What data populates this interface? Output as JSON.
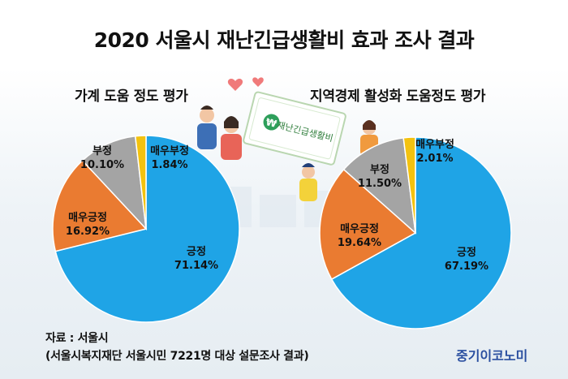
{
  "title": "2020 서울시 재난긴급생활비 효과 조사 결과",
  "chart_data": [
    {
      "type": "pie",
      "title": "가계 도움 정도 평가",
      "slices": [
        {
          "label": "긍정",
          "value": 71.14,
          "display": "71.14%",
          "color": "#1fa4e6"
        },
        {
          "label": "매우긍정",
          "value": 16.92,
          "display": "16.92%",
          "color": "#ea7b31"
        },
        {
          "label": "부정",
          "value": 10.1,
          "display": "10.10%",
          "color": "#a4a4a4"
        },
        {
          "label": "매우부정",
          "value": 1.84,
          "display": "1.84%",
          "color": "#f3c20f"
        }
      ]
    },
    {
      "type": "pie",
      "title": "지역경제 활성화 도움정도 평가",
      "slices": [
        {
          "label": "긍정",
          "value": 67.19,
          "display": "67.19%",
          "color": "#1fa4e6"
        },
        {
          "label": "매우긍정",
          "value": 19.64,
          "display": "19.64%",
          "color": "#ea7b31"
        },
        {
          "label": "부정",
          "value": 11.5,
          "display": "11.50%",
          "color": "#a4a4a4"
        },
        {
          "label": "매우부정",
          "value": 2.01,
          "display": "2.01%",
          "color": "#f3c20f"
        }
      ]
    }
  ],
  "source_line1": "자료 : 서울시",
  "source_line2": "(서울시복지재단 서울시민 7221명 대상 설문조사 결과)",
  "brand": "중기이코노미",
  "illustration": {
    "voucher_text": "재난긴급생활비",
    "voucher_symbol": "₩"
  }
}
